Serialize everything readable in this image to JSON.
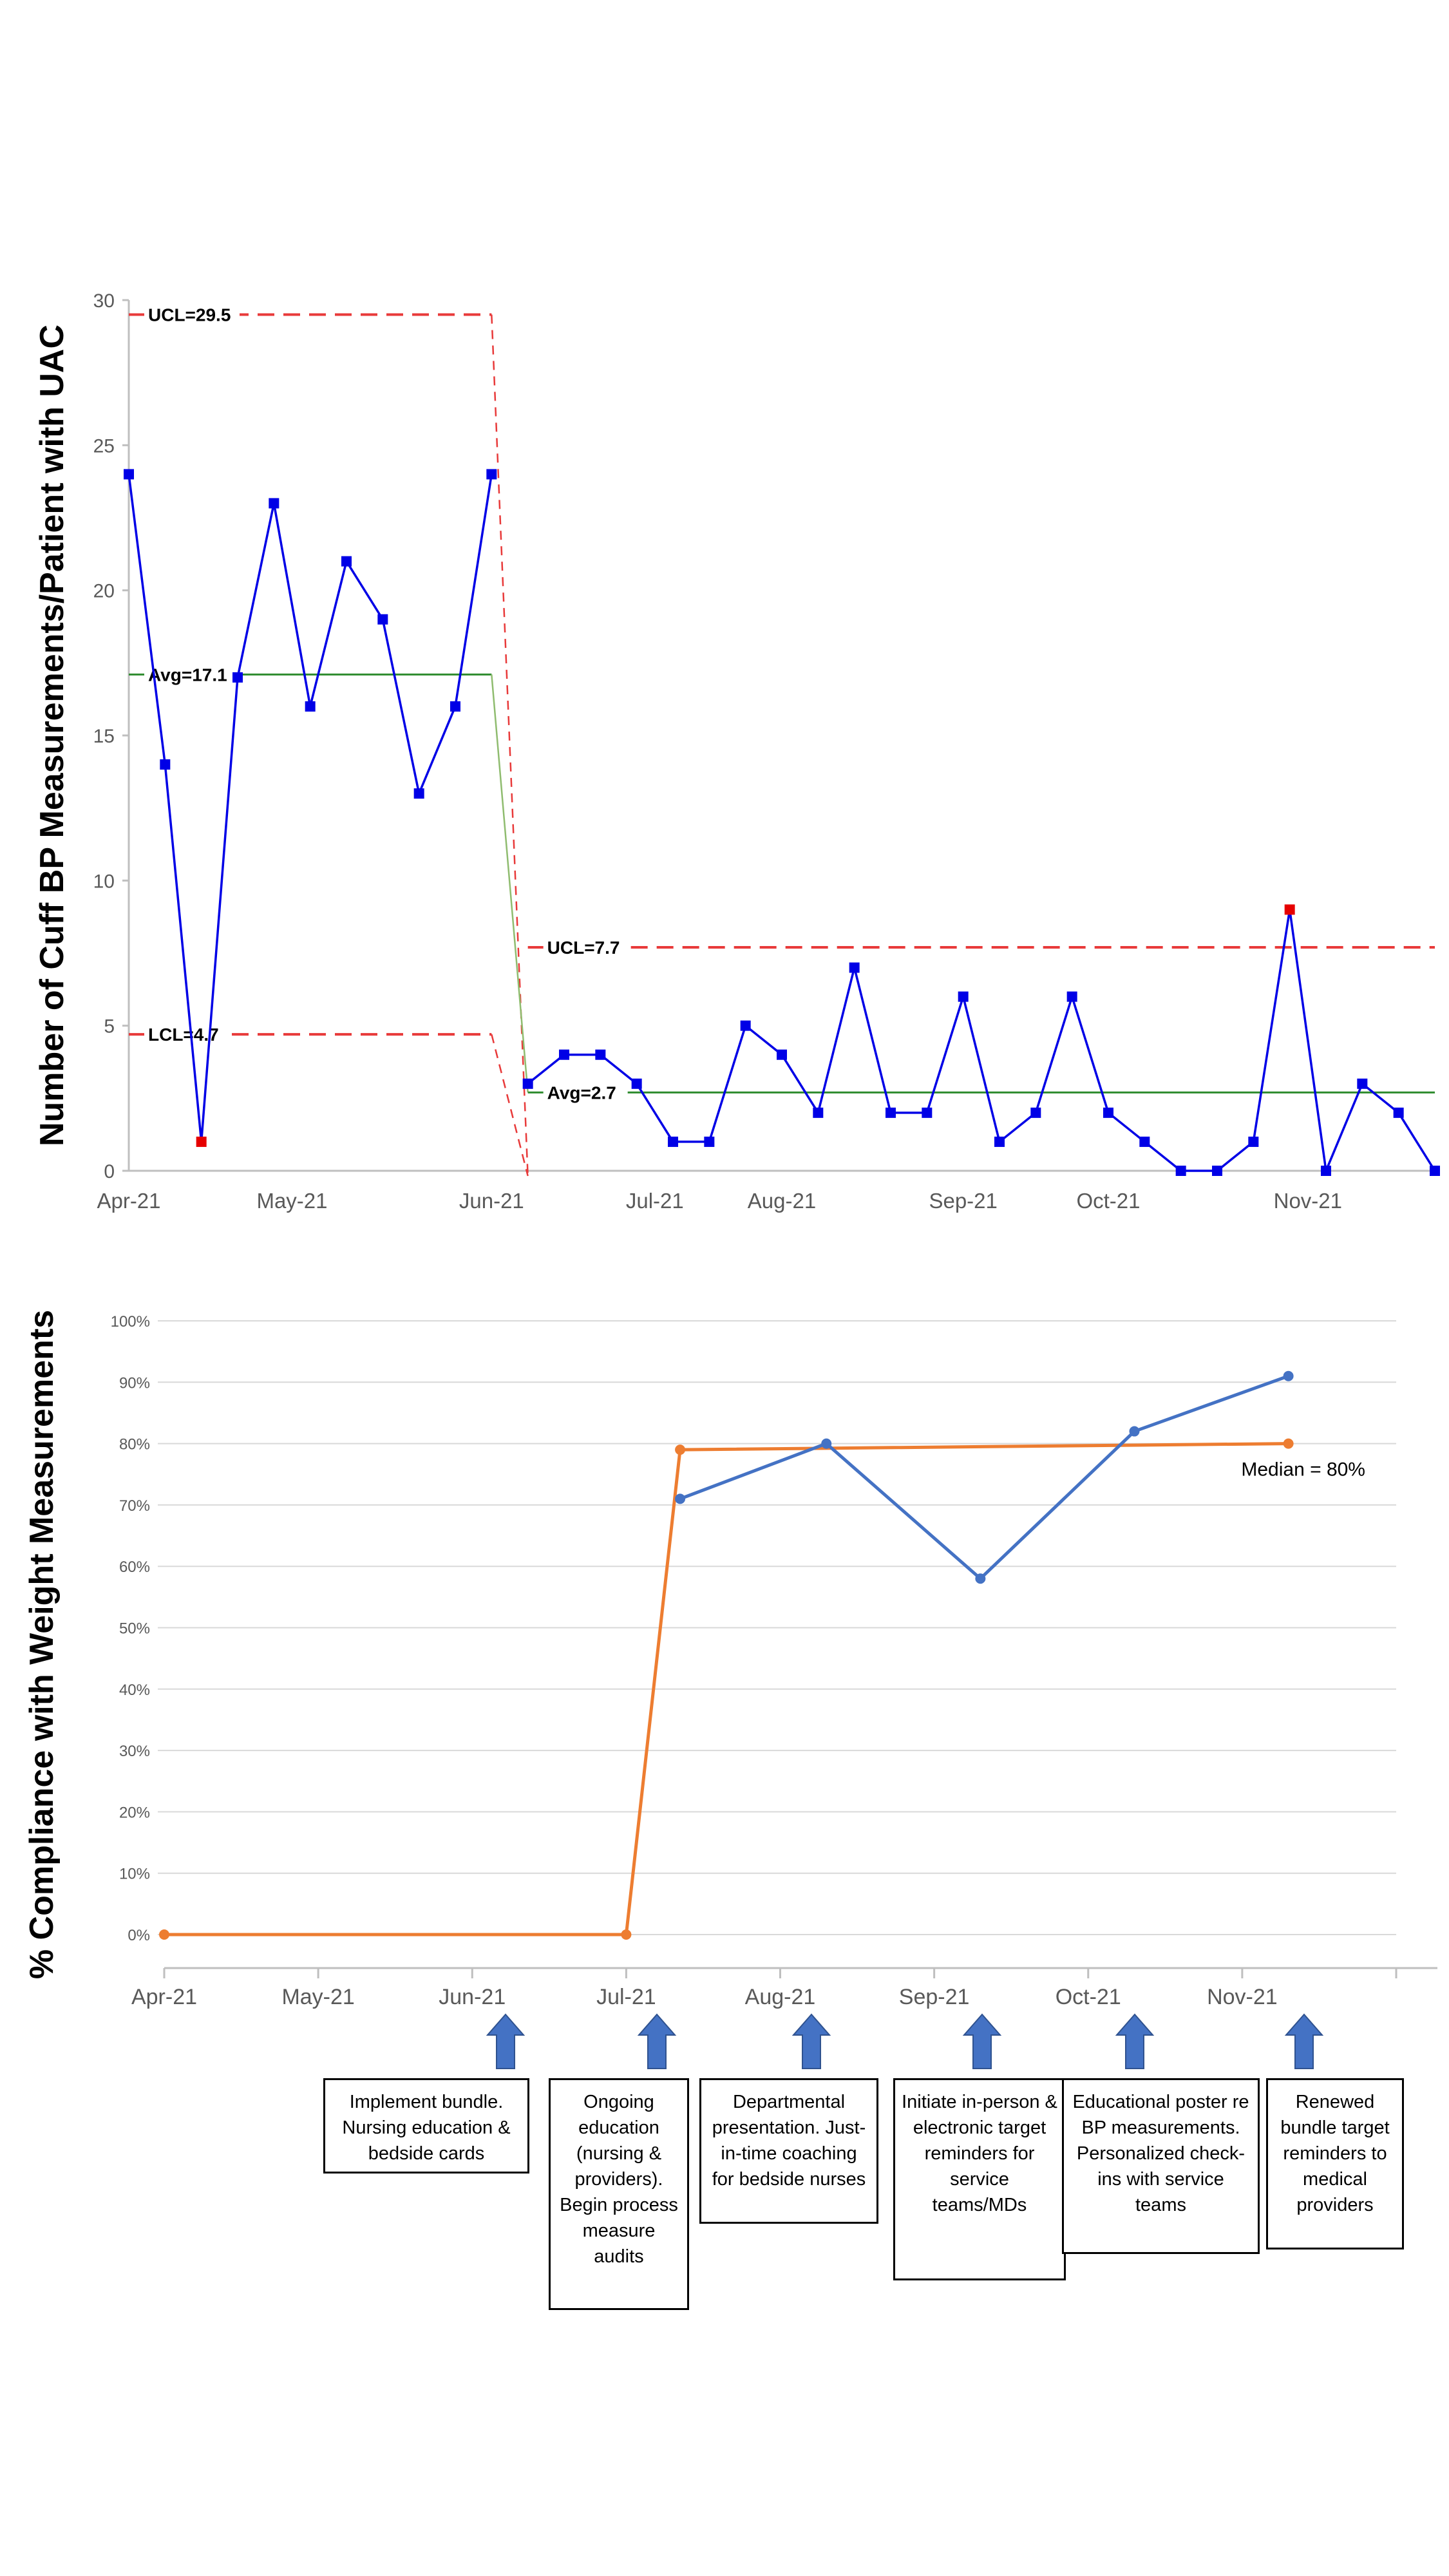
{
  "chart_data": [
    {
      "type": "line",
      "ylabel": "Number of Cuff BP Measurements/Patient with UAC",
      "ylim": [
        0,
        30
      ],
      "yticks": [
        "0",
        "5",
        "10",
        "15",
        "20",
        "25",
        "30"
      ],
      "xtick_labels": [
        "Apr-21",
        "May-21",
        "Jun-21",
        "Jul-21",
        "Aug-21",
        "Sep-21",
        "Oct-21",
        "Nov-21"
      ],
      "xtick_positions": [
        0,
        4.5,
        10,
        14.5,
        18,
        23,
        27,
        32.5
      ],
      "x": [
        0,
        1,
        2,
        3,
        4,
        5,
        6,
        7,
        8,
        9,
        10,
        11,
        12,
        13,
        14,
        15,
        16,
        17,
        18,
        19,
        20,
        21,
        22,
        23,
        24,
        25,
        26,
        27,
        28,
        29,
        30,
        31,
        32,
        33,
        34,
        35,
        36
      ],
      "values": [
        24,
        14,
        1,
        17,
        23,
        16,
        21,
        19,
        13,
        16,
        24,
        3,
        4,
        4,
        3,
        1,
        1,
        5,
        4,
        2,
        7,
        2,
        2,
        6,
        1,
        2,
        6,
        2,
        1,
        0,
        0,
        1,
        9,
        0,
        3,
        2,
        0
      ],
      "special_points": [
        2,
        32
      ],
      "colors": {
        "series": "#0000e6",
        "special": "#e60000",
        "avg": "#2e8b2e",
        "limit": "#e83a3a"
      },
      "phases": [
        {
          "x_start": 0,
          "x_end": 10,
          "avg": 17.1,
          "ucl": 29.5,
          "lcl": 4.7,
          "avg_label": "Avg=17.1",
          "ucl_label": "UCL=29.5",
          "lcl_label": "LCL=4.7"
        },
        {
          "x_start": 11,
          "x_end": 36,
          "avg": 2.7,
          "ucl": 7.7,
          "avg_label": "Avg=2.7",
          "ucl_label": "UCL=7.7"
        }
      ]
    },
    {
      "type": "line",
      "ylabel": "% Compliance with Weight Measurements",
      "ylim": [
        0,
        100
      ],
      "yticks": [
        "0%",
        "10%",
        "20%",
        "30%",
        "40%",
        "50%",
        "60%",
        "70%",
        "80%",
        "90%",
        "100%"
      ],
      "xtick_labels": [
        "Apr-21",
        "May-21",
        "Jun-21",
        "Jul-21",
        "Aug-21",
        "Sep-21",
        "Oct-21",
        "Nov-21"
      ],
      "xlim": [
        0,
        8
      ],
      "series": [
        {
          "color": "#4472c4",
          "x": [
            3.35,
            4.3,
            5.3,
            6.3,
            7.3
          ],
          "values": [
            71,
            80,
            58,
            82,
            91
          ]
        },
        {
          "color": "#ed7d31",
          "x": [
            0,
            3,
            3.35,
            7.3
          ],
          "values": [
            0,
            0,
            79,
            80
          ]
        }
      ],
      "annotation": "Median = 80%",
      "interventions": [
        {
          "month": "Jun-21",
          "text": "Implement bundle. Nursing education & bedside cards"
        },
        {
          "month": "Jul-21",
          "text": "Ongoing education (nursing & providers). Begin process measure audits"
        },
        {
          "month": "Aug-21",
          "text": "Departmental presentation. Just-in-time coaching for bedside nurses"
        },
        {
          "month": "Sep-21",
          "text": "Initiate in-person & electronic target reminders for service teams/MDs"
        },
        {
          "month": "Oct-21",
          "text": "Educational poster re BP measurements. Personalized check-ins with service teams"
        },
        {
          "month": "Nov-21",
          "text": "Renewed bundle target reminders to medical providers"
        }
      ]
    }
  ]
}
